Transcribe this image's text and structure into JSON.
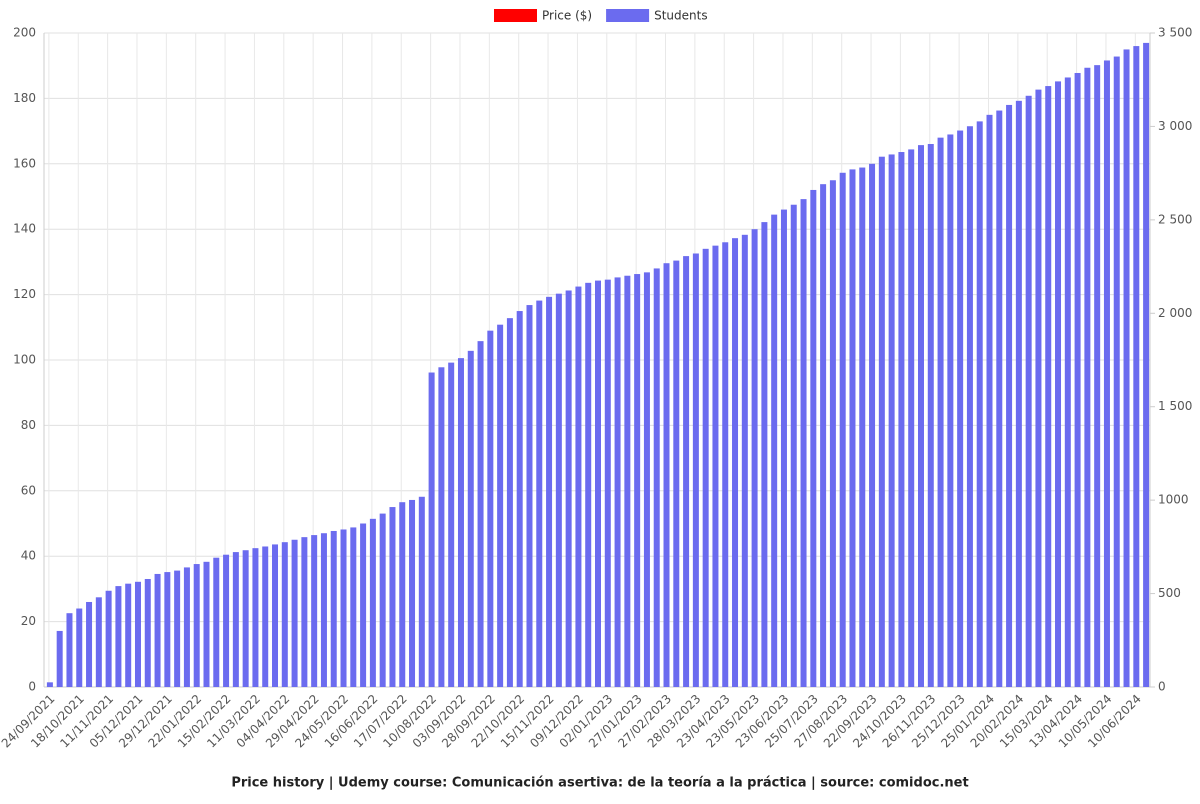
{
  "chart_data": {
    "type": "bar",
    "title": "Price history | Udemy course: Comunicación asertiva: de la teoría a la práctica | source: comidoc.net",
    "categories": [
      "24/09/2021",
      null,
      null,
      "18/10/2021",
      null,
      null,
      "11/11/2021",
      null,
      null,
      "05/12/2021",
      null,
      null,
      "29/12/2021",
      null,
      null,
      "22/01/2022",
      null,
      null,
      "15/02/2022",
      null,
      null,
      "11/03/2022",
      null,
      null,
      "04/04/2022",
      null,
      null,
      "29/04/2022",
      null,
      null,
      "24/05/2022",
      null,
      null,
      "16/06/2022",
      null,
      null,
      "17/07/2022",
      null,
      null,
      "10/08/2022",
      null,
      null,
      "03/09/2022",
      null,
      null,
      "28/09/2022",
      null,
      null,
      "22/10/2022",
      null,
      null,
      "15/11/2022",
      null,
      null,
      "09/12/2022",
      null,
      null,
      "02/01/2023",
      null,
      null,
      "27/01/2023",
      null,
      null,
      "27/02/2023",
      null,
      null,
      "28/03/2023",
      null,
      null,
      "23/04/2023",
      null,
      null,
      "23/05/2023",
      null,
      null,
      "23/06/2023",
      null,
      null,
      "25/07/2023",
      null,
      null,
      "27/08/2023",
      null,
      null,
      "22/09/2023",
      null,
      null,
      "24/10/2023",
      null,
      null,
      "26/11/2023",
      null,
      null,
      "25/12/2023",
      null,
      null,
      "25/01/2024",
      null,
      null,
      "20/02/2024",
      null,
      null,
      "15/03/2024",
      null,
      null,
      "13/04/2024",
      null,
      null,
      "10/05/2024",
      null,
      null,
      "10/06/2024",
      null
    ],
    "series": [
      {
        "name": "Price ($)",
        "color": "#ff0000",
        "values": [
          0,
          0,
          0,
          0,
          0,
          0,
          0,
          0,
          0,
          0,
          0,
          0,
          0,
          0,
          0,
          0,
          0,
          0,
          0,
          0,
          0,
          0,
          0,
          0,
          0,
          0,
          0,
          0,
          0,
          0,
          0,
          0,
          0,
          0,
          0,
          0,
          0,
          0,
          0,
          0,
          0,
          0,
          0,
          0,
          0,
          0,
          0,
          0,
          0,
          0,
          0,
          0,
          0,
          0,
          0,
          0,
          0,
          0,
          0,
          0,
          0,
          0,
          0,
          0,
          0,
          0,
          0,
          0,
          0,
          0,
          0,
          0,
          0,
          0,
          0,
          0,
          0,
          0,
          0,
          0,
          0,
          0,
          0,
          0,
          0,
          0,
          0,
          0,
          0,
          0,
          0,
          0,
          0,
          0,
          0,
          0,
          0,
          0,
          0,
          0,
          0,
          0,
          0,
          0,
          0,
          0,
          0,
          0,
          0,
          0,
          0,
          0,
          0
        ]
      },
      {
        "name": "Students",
        "color": "#6b6bef",
        "axis": "y2",
        "values": [
          25,
          300,
          395,
          420,
          455,
          480,
          515,
          540,
          553,
          563,
          578,
          605,
          615,
          623,
          640,
          658,
          670,
          692,
          708,
          722,
          732,
          743,
          752,
          763,
          775,
          788,
          802,
          813,
          823,
          835,
          843,
          854,
          875,
          900,
          928,
          963,
          989,
          1001,
          1018,
          1683,
          1711,
          1736,
          1760,
          1799,
          1851,
          1907,
          1939,
          1974,
          2012,
          2044,
          2068,
          2088,
          2105,
          2122,
          2143,
          2163,
          2175,
          2180,
          2192,
          2201,
          2210,
          2219,
          2240,
          2268,
          2282,
          2306,
          2320,
          2345,
          2362,
          2380,
          2402,
          2420,
          2450,
          2488,
          2528,
          2555,
          2581,
          2611,
          2660,
          2691,
          2712,
          2752,
          2770,
          2780,
          2800,
          2838,
          2850,
          2863,
          2877,
          2900,
          2906,
          2940,
          2957,
          2978,
          3001,
          3027,
          3062,
          3085,
          3115,
          3137,
          3164,
          3197,
          3216,
          3241,
          3262,
          3286,
          3314,
          3328,
          3353,
          3374,
          3412,
          3430,
          3447
        ]
      }
    ],
    "ylim": [
      0,
      200
    ],
    "yticks": [
      0,
      20,
      40,
      60,
      80,
      100,
      120,
      140,
      160,
      180,
      200
    ],
    "y2lim": [
      0,
      3500
    ],
    "y2ticks": [
      0,
      500,
      1000,
      {
        "value": 1500,
        "label": "1 500"
      },
      {
        "value": 2000,
        "label": "2 000"
      },
      {
        "value": 2500,
        "label": "2 500"
      },
      {
        "value": 3000,
        "label": "3 000"
      },
      {
        "value": 3500,
        "label": "3 500"
      }
    ],
    "grid": true,
    "legend": "top"
  }
}
